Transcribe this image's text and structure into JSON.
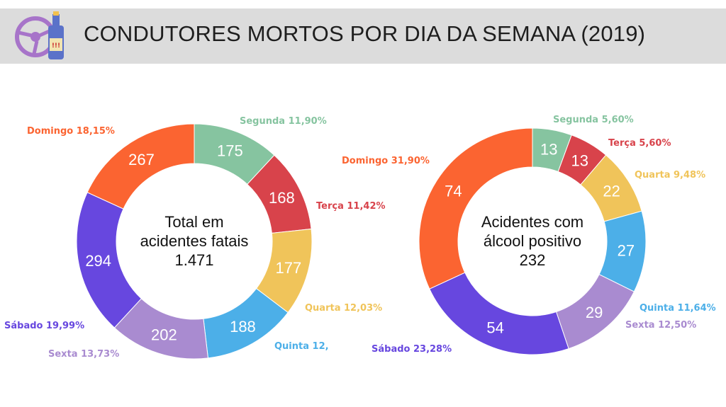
{
  "header": {
    "title": "CONDUTORES MORTOS POR DIA DA SEMANA (2019)",
    "icon": "steering-wheel-bottle-icon"
  },
  "chart_data": [
    {
      "type": "donut",
      "center_label": [
        "Total em",
        "acidentes fatais",
        "1.471"
      ],
      "total": 1471,
      "categories": [
        "Segunda",
        "Terça",
        "Quarta",
        "Quinta",
        "Sexta",
        "Sábado",
        "Domingo"
      ],
      "values": [
        175,
        168,
        177,
        188,
        202,
        294,
        267
      ],
      "value_labels": [
        "175",
        "168",
        "177",
        "188",
        "202",
        "294",
        "267"
      ],
      "legend_labels": [
        "Segunda 11,90%",
        "Terça 11,42%",
        "Quarta 12,03%",
        "Quinta 12,",
        "Sexta 13,73%",
        "Sábado 19,99%",
        "Domingo 18,15%"
      ],
      "colors": [
        "#86c4a0",
        "#d8434b",
        "#f0c45a",
        "#4cafe8",
        "#a98bd0",
        "#6747df",
        "#fb6431"
      ]
    },
    {
      "type": "donut",
      "center_label": [
        "Acidentes com",
        "álcool positivo",
        "232"
      ],
      "total": 232,
      "categories": [
        "Segunda",
        "Terça",
        "Quarta",
        "Quinta",
        "Sexta",
        "Sábado",
        "Domingo"
      ],
      "values": [
        13,
        13,
        22,
        27,
        29,
        54,
        74
      ],
      "value_labels": [
        "13",
        "13",
        "22",
        "27",
        "29",
        "54",
        "74"
      ],
      "legend_labels": [
        "Segunda 5,60%",
        "Terça 5,60%",
        "Quarta 9,48%",
        "Quinta 11,64%",
        "Sexta 12,50%",
        "Sábado 23,28%",
        "Domingo 31,90%"
      ],
      "colors": [
        "#86c4a0",
        "#d8434b",
        "#f0c45a",
        "#4cafe8",
        "#a98bd0",
        "#6747df",
        "#fb6431"
      ]
    }
  ]
}
